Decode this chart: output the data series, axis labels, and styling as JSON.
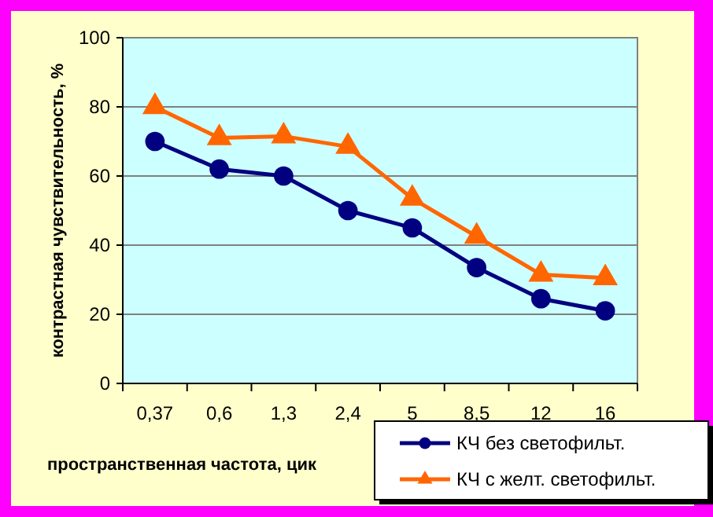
{
  "chart_data": {
    "type": "line",
    "xlabel": "пространственная частота, цик",
    "ylabel": "контрастная чувствительность, %",
    "categories": [
      "0,37",
      "0,6",
      "1,3",
      "2,4",
      "5",
      "8,5",
      "12",
      "16"
    ],
    "series": [
      {
        "name": "КЧ без светофильт.",
        "color": "#000080",
        "marker": "circle",
        "values": [
          70,
          62,
          60,
          50,
          45,
          33.5,
          24.5,
          21
        ]
      },
      {
        "name": "КЧ с желт. светофильт.",
        "color": "#ff6600",
        "marker": "triangle",
        "values": [
          80,
          71,
          71.5,
          68.5,
          53.5,
          42.5,
          31.5,
          30.5
        ]
      }
    ],
    "ylim": [
      0,
      100
    ],
    "yticks": [
      0,
      20,
      40,
      60,
      80,
      100
    ],
    "grid": "y",
    "legend": "bottom right"
  }
}
